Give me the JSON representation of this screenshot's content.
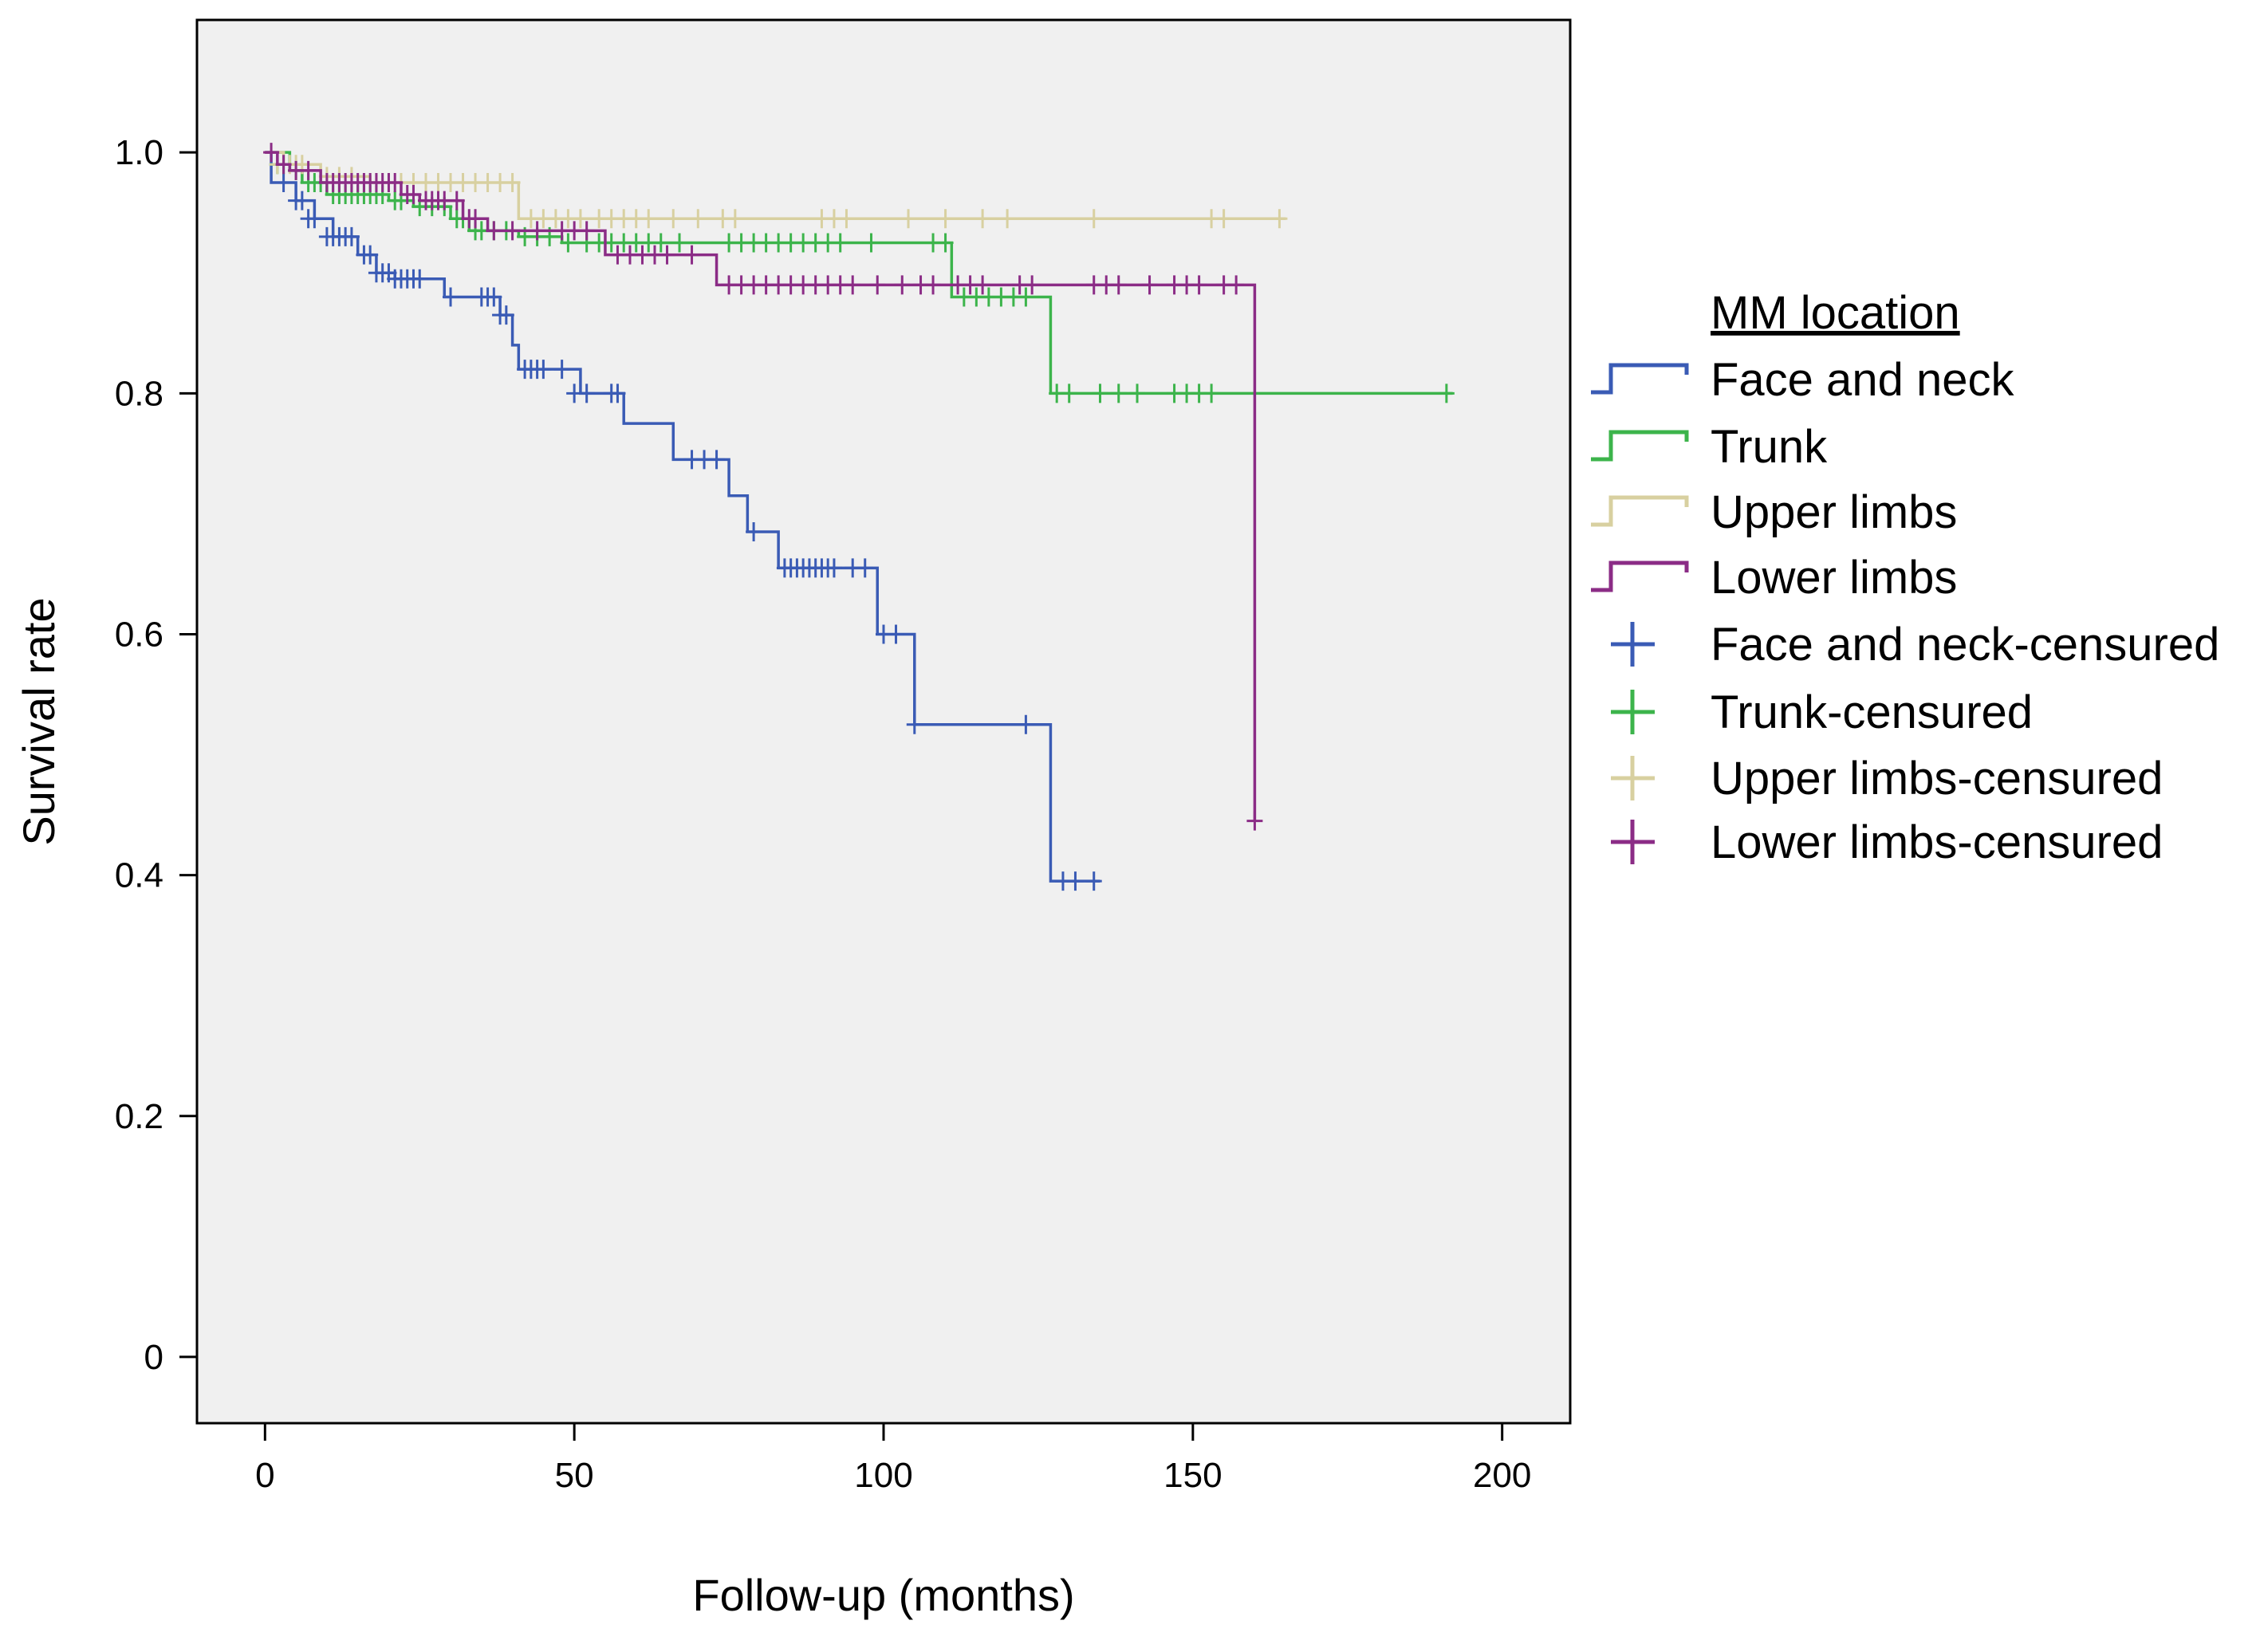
{
  "chart_data": {
    "type": "line",
    "subtype": "kaplan-meier",
    "title": "",
    "xlabel": "Follow-up (months)",
    "ylabel": "Survival rate",
    "xlim": [
      -11,
      211
    ],
    "ylim": [
      -0.055,
      1.11
    ],
    "xticks": [
      0,
      50,
      100,
      150,
      200
    ],
    "xtick_labels": [
      "0",
      "50",
      "100",
      "150",
      "200"
    ],
    "yticks": [
      0,
      0.2,
      0.4,
      0.6,
      0.8,
      1.0
    ],
    "ytick_labels": [
      "0",
      "0.2",
      "0.4",
      "0.6",
      "0.8",
      "1.0"
    ],
    "grid": false,
    "legend": {
      "title": "MM location",
      "position": "right",
      "entries": [
        {
          "label": "Face and neck",
          "kind": "line",
          "color": "#3a5bb5"
        },
        {
          "label": "Trunk",
          "kind": "line",
          "color": "#3cb44b"
        },
        {
          "label": "Upper limbs",
          "kind": "line",
          "color": "#d8d0a0"
        },
        {
          "label": "Lower limbs",
          "kind": "line",
          "color": "#8b2c86"
        },
        {
          "label": "Face and neck-censured",
          "kind": "censor",
          "color": "#3a5bb5"
        },
        {
          "label": "Trunk-censured",
          "kind": "censor",
          "color": "#3cb44b"
        },
        {
          "label": "Upper limbs-censured",
          "kind": "censor",
          "color": "#d8d0a0"
        },
        {
          "label": "Lower limbs-censured",
          "kind": "censor",
          "color": "#8b2c86"
        }
      ]
    },
    "series": [
      {
        "name": "Face and neck",
        "color": "#3a5bb5",
        "steps": [
          [
            0,
            1.0
          ],
          [
            1,
            0.975
          ],
          [
            5,
            0.96
          ],
          [
            8,
            0.945
          ],
          [
            11,
            0.93
          ],
          [
            15,
            0.915
          ],
          [
            18,
            0.9
          ],
          [
            21,
            0.895
          ],
          [
            29,
            0.88
          ],
          [
            38,
            0.865
          ],
          [
            40,
            0.84
          ],
          [
            41,
            0.82
          ],
          [
            51,
            0.8
          ],
          [
            58,
            0.775
          ],
          [
            66,
            0.745
          ],
          [
            75,
            0.715
          ],
          [
            78,
            0.685
          ],
          [
            83,
            0.655
          ],
          [
            99,
            0.6
          ],
          [
            105,
            0.525
          ],
          [
            127,
            0.395
          ]
        ],
        "end": 135,
        "censored": [
          [
            3,
            0.975
          ],
          [
            5,
            0.96
          ],
          [
            6,
            0.96
          ],
          [
            7,
            0.945
          ],
          [
            8,
            0.945
          ],
          [
            10,
            0.93
          ],
          [
            11,
            0.93
          ],
          [
            12,
            0.93
          ],
          [
            13,
            0.93
          ],
          [
            14,
            0.93
          ],
          [
            16,
            0.915
          ],
          [
            17,
            0.915
          ],
          [
            18,
            0.9
          ],
          [
            19,
            0.9
          ],
          [
            20,
            0.9
          ],
          [
            21,
            0.895
          ],
          [
            22,
            0.895
          ],
          [
            23,
            0.895
          ],
          [
            24,
            0.895
          ],
          [
            25,
            0.895
          ],
          [
            30,
            0.88
          ],
          [
            35,
            0.88
          ],
          [
            36,
            0.88
          ],
          [
            37,
            0.88
          ],
          [
            38,
            0.865
          ],
          [
            39,
            0.865
          ],
          [
            42,
            0.82
          ],
          [
            43,
            0.82
          ],
          [
            44,
            0.82
          ],
          [
            45,
            0.82
          ],
          [
            48,
            0.82
          ],
          [
            50,
            0.8
          ],
          [
            52,
            0.8
          ],
          [
            56,
            0.8
          ],
          [
            57,
            0.8
          ],
          [
            69,
            0.745
          ],
          [
            71,
            0.745
          ],
          [
            73,
            0.745
          ],
          [
            79,
            0.685
          ],
          [
            84,
            0.655
          ],
          [
            85,
            0.655
          ],
          [
            86,
            0.655
          ],
          [
            87,
            0.655
          ],
          [
            88,
            0.655
          ],
          [
            89,
            0.655
          ],
          [
            90,
            0.655
          ],
          [
            91,
            0.655
          ],
          [
            92,
            0.655
          ],
          [
            95,
            0.655
          ],
          [
            97,
            0.655
          ],
          [
            100,
            0.6
          ],
          [
            102,
            0.6
          ],
          [
            105,
            0.525
          ],
          [
            123,
            0.525
          ],
          [
            129,
            0.395
          ],
          [
            131,
            0.395
          ],
          [
            134,
            0.395
          ]
        ]
      },
      {
        "name": "Trunk",
        "color": "#3cb44b",
        "steps": [
          [
            0,
            1.0
          ],
          [
            4,
            0.985
          ],
          [
            6,
            0.975
          ],
          [
            10,
            0.965
          ],
          [
            20,
            0.96
          ],
          [
            24,
            0.955
          ],
          [
            30,
            0.945
          ],
          [
            33,
            0.935
          ],
          [
            41,
            0.93
          ],
          [
            48,
            0.925
          ],
          [
            111,
            0.88
          ],
          [
            127,
            0.8
          ]
        ],
        "end": 192,
        "censored": [
          [
            2,
            0.99
          ],
          [
            3,
            0.99
          ],
          [
            5,
            0.985
          ],
          [
            7,
            0.975
          ],
          [
            8,
            0.975
          ],
          [
            9,
            0.975
          ],
          [
            11,
            0.965
          ],
          [
            12,
            0.965
          ],
          [
            13,
            0.965
          ],
          [
            14,
            0.965
          ],
          [
            15,
            0.965
          ],
          [
            16,
            0.965
          ],
          [
            17,
            0.965
          ],
          [
            18,
            0.965
          ],
          [
            19,
            0.965
          ],
          [
            21,
            0.96
          ],
          [
            22,
            0.96
          ],
          [
            25,
            0.955
          ],
          [
            27,
            0.955
          ],
          [
            29,
            0.955
          ],
          [
            31,
            0.945
          ],
          [
            32,
            0.945
          ],
          [
            34,
            0.935
          ],
          [
            35,
            0.935
          ],
          [
            37,
            0.935
          ],
          [
            39,
            0.935
          ],
          [
            42,
            0.93
          ],
          [
            44,
            0.93
          ],
          [
            46,
            0.93
          ],
          [
            49,
            0.925
          ],
          [
            52,
            0.925
          ],
          [
            54,
            0.925
          ],
          [
            56,
            0.925
          ],
          [
            58,
            0.925
          ],
          [
            60,
            0.925
          ],
          [
            62,
            0.925
          ],
          [
            64,
            0.925
          ],
          [
            67,
            0.925
          ],
          [
            75,
            0.925
          ],
          [
            77,
            0.925
          ],
          [
            79,
            0.925
          ],
          [
            81,
            0.925
          ],
          [
            83,
            0.925
          ],
          [
            85,
            0.925
          ],
          [
            87,
            0.925
          ],
          [
            89,
            0.925
          ],
          [
            91,
            0.925
          ],
          [
            93,
            0.925
          ],
          [
            98,
            0.925
          ],
          [
            108,
            0.925
          ],
          [
            110,
            0.925
          ],
          [
            113,
            0.88
          ],
          [
            115,
            0.88
          ],
          [
            117,
            0.88
          ],
          [
            119,
            0.88
          ],
          [
            121,
            0.88
          ],
          [
            123,
            0.88
          ],
          [
            128,
            0.8
          ],
          [
            130,
            0.8
          ],
          [
            135,
            0.8
          ],
          [
            138,
            0.8
          ],
          [
            141,
            0.8
          ],
          [
            147,
            0.8
          ],
          [
            149,
            0.8
          ],
          [
            151,
            0.8
          ],
          [
            153,
            0.8
          ],
          [
            191,
            0.8
          ]
        ]
      },
      {
        "name": "Upper limbs",
        "color": "#d8d0a0",
        "steps": [
          [
            0,
            1.0
          ],
          [
            3,
            0.99
          ],
          [
            9,
            0.98
          ],
          [
            17,
            0.975
          ],
          [
            41,
            0.945
          ]
        ],
        "end": 165,
        "censored": [
          [
            2,
            0.99
          ],
          [
            4,
            0.99
          ],
          [
            5,
            0.99
          ],
          [
            6,
            0.99
          ],
          [
            10,
            0.98
          ],
          [
            12,
            0.98
          ],
          [
            14,
            0.98
          ],
          [
            18,
            0.975
          ],
          [
            20,
            0.975
          ],
          [
            22,
            0.975
          ],
          [
            24,
            0.975
          ],
          [
            26,
            0.975
          ],
          [
            28,
            0.975
          ],
          [
            30,
            0.975
          ],
          [
            32,
            0.975
          ],
          [
            34,
            0.975
          ],
          [
            36,
            0.975
          ],
          [
            38,
            0.975
          ],
          [
            40,
            0.975
          ],
          [
            43,
            0.945
          ],
          [
            45,
            0.945
          ],
          [
            47,
            0.945
          ],
          [
            49,
            0.945
          ],
          [
            51,
            0.945
          ],
          [
            54,
            0.945
          ],
          [
            56,
            0.945
          ],
          [
            58,
            0.945
          ],
          [
            60,
            0.945
          ],
          [
            62,
            0.945
          ],
          [
            66,
            0.945
          ],
          [
            70,
            0.945
          ],
          [
            74,
            0.945
          ],
          [
            76,
            0.945
          ],
          [
            90,
            0.945
          ],
          [
            92,
            0.945
          ],
          [
            94,
            0.945
          ],
          [
            104,
            0.945
          ],
          [
            110,
            0.945
          ],
          [
            116,
            0.945
          ],
          [
            120,
            0.945
          ],
          [
            134,
            0.945
          ],
          [
            153,
            0.945
          ],
          [
            155,
            0.945
          ],
          [
            164,
            0.945
          ]
        ]
      },
      {
        "name": "Lower limbs",
        "color": "#8b2c86",
        "steps": [
          [
            0,
            1.0
          ],
          [
            2,
            0.99
          ],
          [
            4,
            0.985
          ],
          [
            9,
            0.975
          ],
          [
            22,
            0.965
          ],
          [
            25,
            0.96
          ],
          [
            32,
            0.945
          ],
          [
            36,
            0.935
          ],
          [
            55,
            0.915
          ],
          [
            73,
            0.89
          ],
          [
            160,
            0.445
          ]
        ],
        "end": 160,
        "censored": [
          [
            1,
            1.0
          ],
          [
            3,
            0.99
          ],
          [
            5,
            0.985
          ],
          [
            7,
            0.985
          ],
          [
            10,
            0.975
          ],
          [
            11,
            0.975
          ],
          [
            12,
            0.975
          ],
          [
            13,
            0.975
          ],
          [
            14,
            0.975
          ],
          [
            15,
            0.975
          ],
          [
            16,
            0.975
          ],
          [
            17,
            0.975
          ],
          [
            18,
            0.975
          ],
          [
            19,
            0.975
          ],
          [
            20,
            0.975
          ],
          [
            21,
            0.975
          ],
          [
            23,
            0.965
          ],
          [
            24,
            0.965
          ],
          [
            26,
            0.96
          ],
          [
            27,
            0.96
          ],
          [
            28,
            0.96
          ],
          [
            29,
            0.96
          ],
          [
            31,
            0.96
          ],
          [
            33,
            0.945
          ],
          [
            34,
            0.945
          ],
          [
            37,
            0.935
          ],
          [
            40,
            0.935
          ],
          [
            44,
            0.935
          ],
          [
            48,
            0.935
          ],
          [
            50,
            0.935
          ],
          [
            52,
            0.935
          ],
          [
            57,
            0.915
          ],
          [
            59,
            0.915
          ],
          [
            61,
            0.915
          ],
          [
            63,
            0.915
          ],
          [
            65,
            0.915
          ],
          [
            69,
            0.915
          ],
          [
            75,
            0.89
          ],
          [
            77,
            0.89
          ],
          [
            79,
            0.89
          ],
          [
            81,
            0.89
          ],
          [
            83,
            0.89
          ],
          [
            85,
            0.89
          ],
          [
            87,
            0.89
          ],
          [
            89,
            0.89
          ],
          [
            91,
            0.89
          ],
          [
            93,
            0.89
          ],
          [
            95,
            0.89
          ],
          [
            99,
            0.89
          ],
          [
            103,
            0.89
          ],
          [
            106,
            0.89
          ],
          [
            108,
            0.89
          ],
          [
            112,
            0.89
          ],
          [
            114,
            0.89
          ],
          [
            116,
            0.89
          ],
          [
            122,
            0.89
          ],
          [
            124,
            0.89
          ],
          [
            134,
            0.89
          ],
          [
            136,
            0.89
          ],
          [
            138,
            0.89
          ],
          [
            143,
            0.89
          ],
          [
            147,
            0.89
          ],
          [
            149,
            0.89
          ],
          [
            151,
            0.89
          ],
          [
            155,
            0.89
          ],
          [
            157,
            0.89
          ],
          [
            160,
            0.445
          ]
        ]
      }
    ]
  }
}
